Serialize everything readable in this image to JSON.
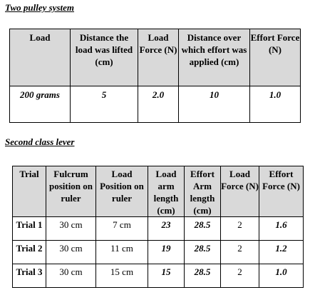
{
  "section1": {
    "heading": "Two pulley system",
    "headers": [
      "Load",
      "Distance the load was lifted (cm)",
      "Load Force (N)",
      "Distance over which effort was applied (cm)",
      "Effort Force (N)"
    ],
    "row": [
      "200 grams",
      "5",
      "2.0",
      "10",
      "1.0"
    ]
  },
  "section2": {
    "heading": "Second class lever",
    "headers": [
      "Trial",
      "Fulcrum position on ruler",
      "Load Position on ruler",
      "Load arm length (cm)",
      "Effort Arm length (cm)",
      "Load Force (N)",
      "Effort Force (N)"
    ],
    "rows": [
      [
        "Trial 1",
        "30 cm",
        "7 cm",
        "23",
        "28.5",
        "2",
        "1.6"
      ],
      [
        "Trial 2",
        "30 cm",
        "11 cm",
        "19",
        "28.5",
        "2",
        "1.2"
      ],
      [
        "Trial 3",
        "30 cm",
        "15 cm",
        "15",
        "28.5",
        "2",
        "1.0"
      ]
    ]
  }
}
